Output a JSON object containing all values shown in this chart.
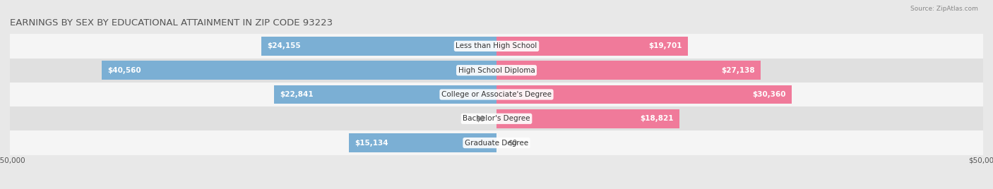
{
  "title": "EARNINGS BY SEX BY EDUCATIONAL ATTAINMENT IN ZIP CODE 93223",
  "source": "Source: ZipAtlas.com",
  "categories": [
    "Less than High School",
    "High School Diploma",
    "College or Associate's Degree",
    "Bachelor's Degree",
    "Graduate Degree"
  ],
  "male_values": [
    24155,
    40560,
    22841,
    0,
    15134
  ],
  "female_values": [
    19701,
    27138,
    30360,
    18821,
    0
  ],
  "male_color": "#7bafd4",
  "female_color": "#f07a9a",
  "max_value": 50000,
  "bar_height": 0.78,
  "bg_color": "#e8e8e8",
  "row_colors": [
    "#f5f5f5",
    "#e0e0e0"
  ],
  "title_fontsize": 9.5,
  "label_fontsize": 7.5,
  "tick_fontsize": 7.5,
  "legend_fontsize": 8,
  "value_color_inside": "white",
  "value_color_outside": "#555555"
}
